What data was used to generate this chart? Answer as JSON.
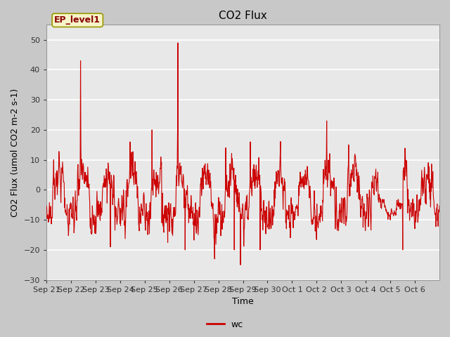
{
  "title": "CO2 Flux",
  "xlabel": "Time",
  "ylabel": "CO2 Flux (umol CO2 m-2 s-1)",
  "ylim": [
    -30,
    55
  ],
  "yticks": [
    -30,
    -20,
    -10,
    0,
    10,
    20,
    30,
    40,
    50
  ],
  "line_color": "#cc0000",
  "legend_label": "wc",
  "annotation_text": "EP_level1",
  "fig_bg_color": "#c8c8c8",
  "plot_bg_color": "#e8e8e8",
  "grid_color": "#ffffff",
  "title_fontsize": 11,
  "axis_label_fontsize": 9,
  "tick_label_fontsize": 8,
  "xtick_labels": [
    "Sep 21",
    "Sep 22",
    "Sep 23",
    "Sep 24",
    "Sep 25",
    "Sep 26",
    "Sep 27",
    "Sep 28",
    "Sep 29",
    "Sep 30",
    "Oct 1",
    "Oct 2",
    "Oct 3",
    "Oct 4",
    "Oct 5",
    "Oct 6"
  ],
  "n_days": 16,
  "n_points": 1200
}
